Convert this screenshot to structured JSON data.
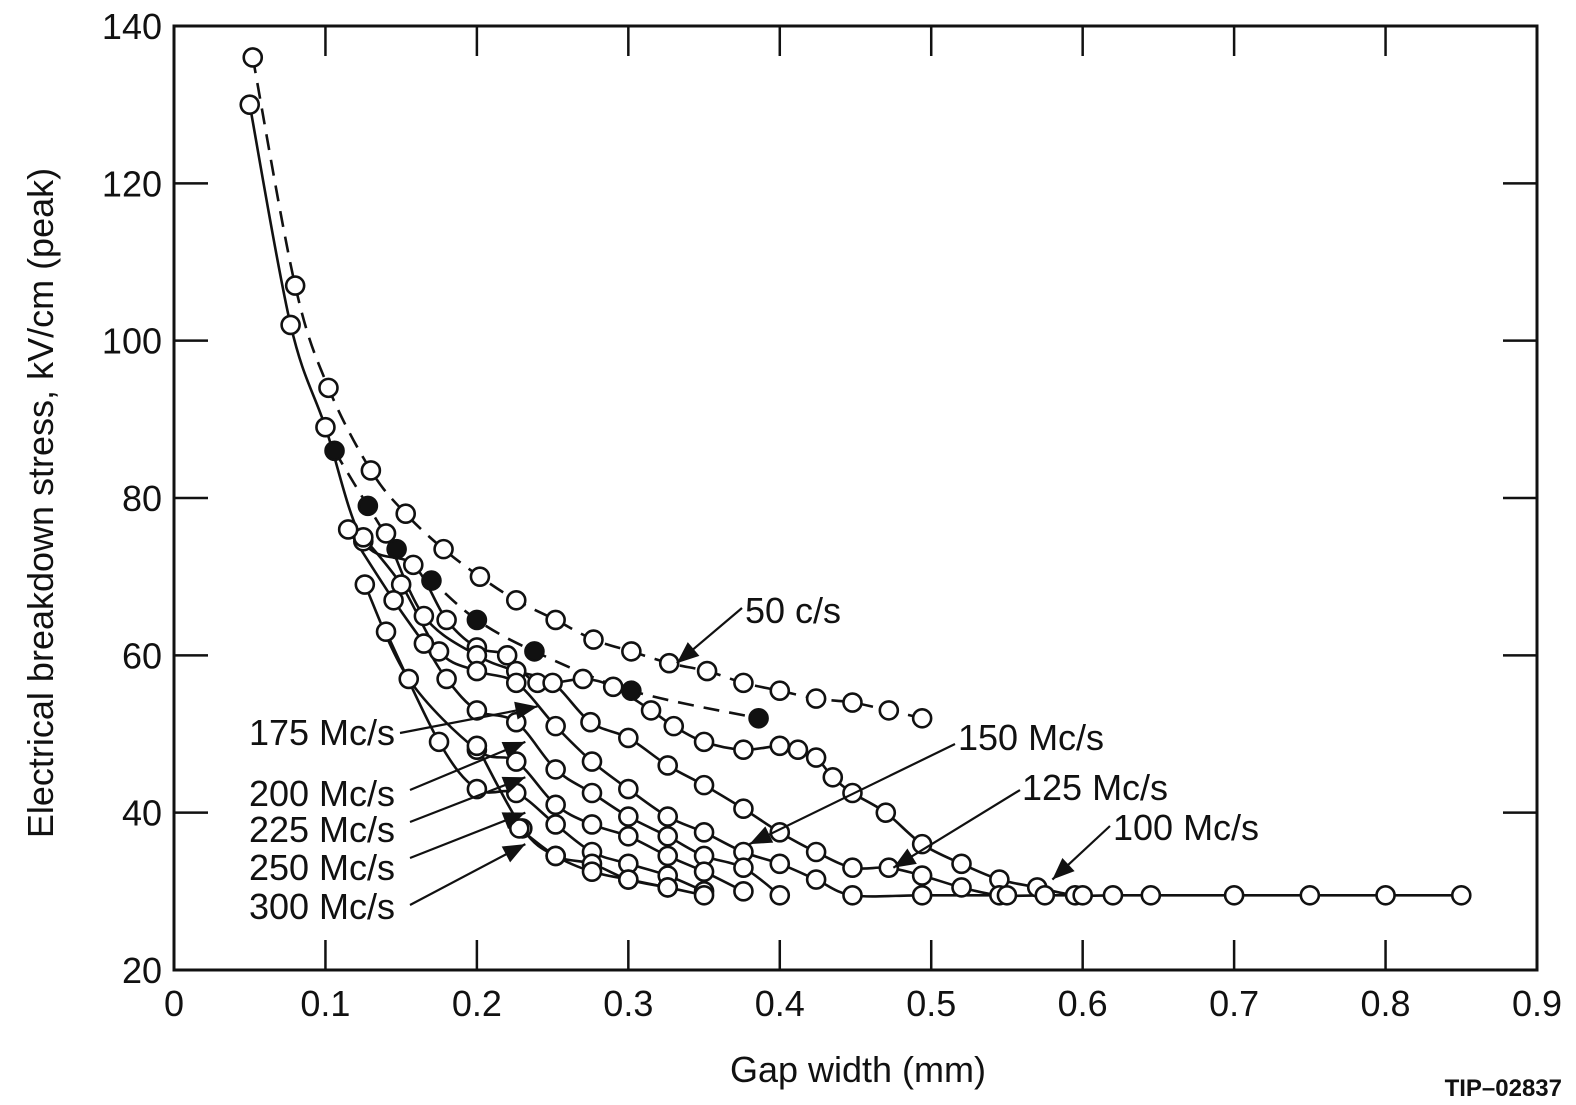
{
  "chart_data": {
    "type": "line",
    "title": "",
    "xlabel": "Gap width (mm)",
    "ylabel": "Electrical breakdown stress, kV/cm (peak)",
    "xlim": [
      0,
      0.9
    ],
    "ylim": [
      20,
      140
    ],
    "x_ticks": [
      "0",
      "0.1",
      "0.2",
      "0.3",
      "0.4",
      "0.5",
      "0.6",
      "0.7",
      "0.8",
      "0.9"
    ],
    "y_ticks": [
      "20",
      "40",
      "60",
      "80",
      "100",
      "120",
      "140"
    ],
    "grid": false,
    "figure_code": "TIP–02837",
    "series": [
      {
        "name": "50 c/s",
        "style": "dashed",
        "marker": "open",
        "x": [
          0.052,
          0.08,
          0.102,
          0.13,
          0.153,
          0.178,
          0.202,
          0.226,
          0.252,
          0.277,
          0.302,
          0.327,
          0.352,
          0.376,
          0.4,
          0.424,
          0.448,
          0.472,
          0.494
        ],
        "y": [
          136,
          107,
          94,
          83.5,
          78,
          73.5,
          70,
          67,
          64.5,
          62,
          60.5,
          59,
          58,
          56.5,
          55.5,
          54.5,
          54,
          53,
          52
        ]
      },
      {
        "name": "",
        "style": "dashed",
        "marker": "filled",
        "x": [
          0.106,
          0.128,
          0.147,
          0.17,
          0.2,
          0.238,
          0.302,
          0.386
        ],
        "y": [
          86,
          79,
          73.5,
          69.5,
          64.5,
          60.5,
          55.5,
          52
        ]
      },
      {
        "name": "100 Mc/s",
        "style": "solid",
        "marker": "open",
        "x": [
          0.05,
          0.077,
          0.1,
          0.125,
          0.158,
          0.18,
          0.2,
          0.22,
          0.24,
          0.27,
          0.29,
          0.315,
          0.33,
          0.35,
          0.376,
          0.4,
          0.412,
          0.424,
          0.435,
          0.448,
          0.47,
          0.494,
          0.52,
          0.545,
          0.57,
          0.595,
          0.62,
          0.645,
          0.7,
          0.75,
          0.8,
          0.85
        ],
        "y": [
          130,
          102,
          89,
          74.5,
          71.5,
          64.5,
          61,
          60,
          56.5,
          57,
          56,
          53,
          51,
          49,
          48,
          48.5,
          48,
          47,
          44.5,
          42.5,
          40,
          36,
          33.5,
          31.5,
          30.5,
          29.5,
          29.5,
          29.5,
          29.5,
          29.5,
          29.5,
          29.5
        ]
      },
      {
        "name": "125 Mc/s",
        "style": "solid",
        "marker": "open",
        "x": [
          0.14,
          0.165,
          0.2,
          0.226,
          0.25,
          0.275,
          0.3,
          0.326,
          0.35,
          0.376,
          0.4,
          0.424,
          0.448,
          0.472,
          0.494,
          0.52,
          0.545,
          0.575,
          0.6
        ],
        "y": [
          75.5,
          65,
          60,
          58,
          56.5,
          51.5,
          49.5,
          46,
          43.5,
          40.5,
          37.5,
          35,
          33,
          33,
          32,
          30.5,
          29.5,
          29.5,
          29.5
        ]
      },
      {
        "name": "150 Mc/s",
        "style": "solid",
        "marker": "open",
        "x": [
          0.125,
          0.15,
          0.175,
          0.2,
          0.226,
          0.252,
          0.276,
          0.3,
          0.326,
          0.35,
          0.376,
          0.4,
          0.424,
          0.448,
          0.494,
          0.55
        ],
        "y": [
          75,
          69,
          60.5,
          58,
          56.5,
          51,
          46.5,
          43,
          39.5,
          37.5,
          35,
          33.5,
          31.5,
          29.5,
          29.5,
          29.5
        ]
      },
      {
        "name": "175 Mc/s",
        "style": "solid",
        "marker": "open",
        "x": [
          0.115,
          0.145,
          0.165,
          0.18,
          0.2,
          0.226,
          0.252,
          0.276,
          0.3,
          0.326,
          0.35,
          0.376,
          0.4
        ],
        "y": [
          76,
          67,
          61.5,
          57,
          53,
          51.5,
          45.5,
          42.5,
          39.5,
          37,
          34.5,
          33,
          29.5
        ]
      },
      {
        "name": "200 Mc/s",
        "style": "solid",
        "marker": "open",
        "x": [
          0.126,
          0.155,
          0.2,
          0.226,
          0.252,
          0.276,
          0.3,
          0.326,
          0.35,
          0.376
        ],
        "y": [
          69,
          57,
          48,
          46.5,
          41,
          38.5,
          37,
          34.5,
          32.5,
          30
        ]
      },
      {
        "name": "225 Mc/s",
        "style": "solid",
        "marker": "open",
        "x": [
          0.14,
          0.175,
          0.2,
          0.226,
          0.252,
          0.276,
          0.3,
          0.326,
          0.35
        ],
        "y": [
          63,
          49,
          43,
          42.5,
          38.5,
          35,
          33.5,
          32,
          30
        ]
      },
      {
        "name": "250 Mc/s",
        "style": "solid",
        "marker": "open",
        "x": [
          0.2,
          0.23,
          0.252,
          0.276,
          0.3,
          0.326
        ],
        "y": [
          48.5,
          38,
          34.5,
          33.5,
          31.5,
          30.5
        ]
      },
      {
        "name": "300 Mc/s",
        "style": "solid",
        "marker": "open",
        "x": [
          0.228,
          0.252,
          0.276,
          0.3,
          0.326,
          0.35
        ],
        "y": [
          38,
          34.5,
          32.5,
          31.5,
          30.5,
          29.5
        ]
      }
    ],
    "annotations": [
      {
        "text": "50 c/s",
        "points_to": [
          0.332,
          59
        ]
      },
      {
        "text": "150 Mc/s",
        "points_to": [
          0.38,
          36
        ]
      },
      {
        "text": "125 Mc/s",
        "points_to": [
          0.475,
          33
        ]
      },
      {
        "text": "100 Mc/s",
        "points_to": [
          0.58,
          31.5
        ]
      },
      {
        "text": "175 Mc/s",
        "points_to": [
          0.24,
          53.5
        ]
      },
      {
        "text": "200 Mc/s",
        "points_to": [
          0.232,
          49
        ]
      },
      {
        "text": "225 Mc/s",
        "points_to": [
          0.232,
          44.5
        ]
      },
      {
        "text": "250 Mc/s",
        "points_to": [
          0.232,
          40
        ]
      },
      {
        "text": "300 Mc/s",
        "points_to": [
          0.232,
          36
        ]
      }
    ]
  }
}
